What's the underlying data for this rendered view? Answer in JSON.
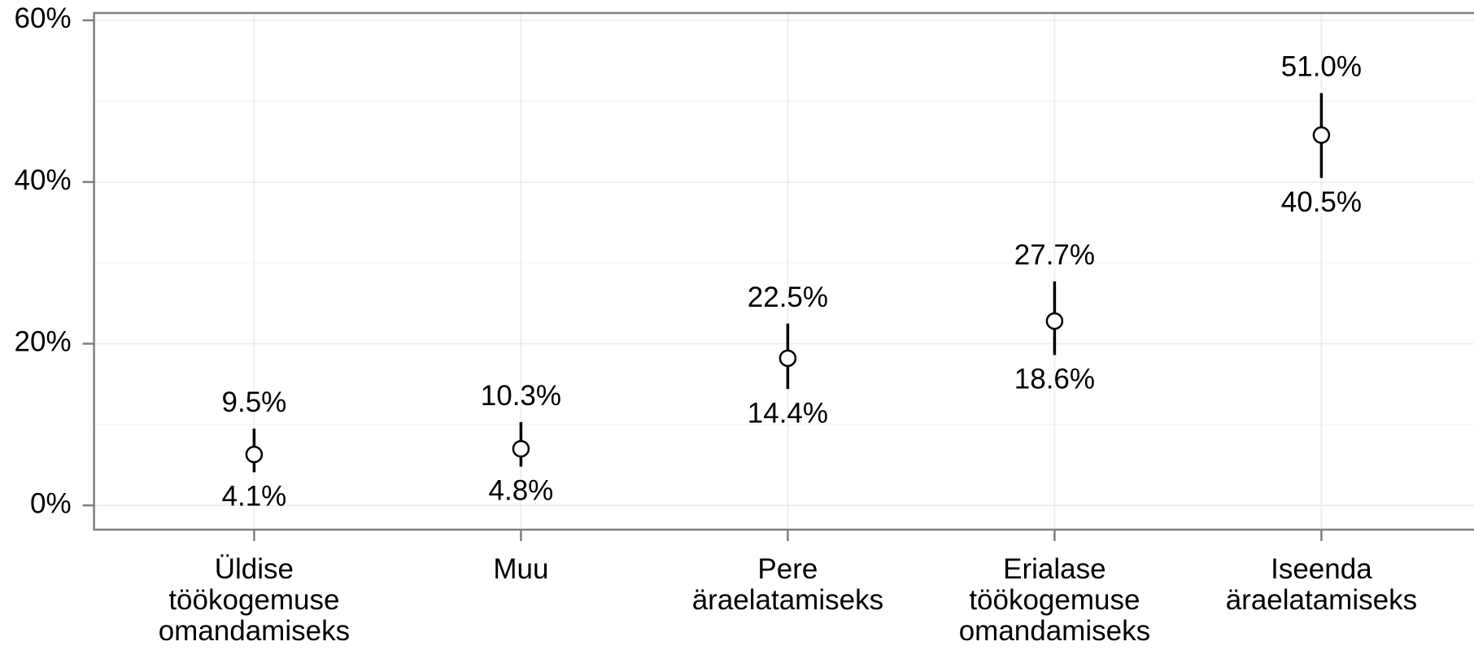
{
  "chart_data": {
    "type": "pointrange",
    "categories": [
      "Üldise töökogemuse omandamiseks",
      "Muu",
      "Pere äraelatamiseks",
      "Erialase töökogemuse omandamiseks",
      "Iseenda äraelatamiseks"
    ],
    "series": [
      {
        "color": "#000000",
        "values": [
          6.3,
          7.0,
          18.2,
          22.8,
          45.8
        ],
        "lower": [
          4.1,
          4.8,
          14.4,
          18.6,
          40.5
        ],
        "lower_labels": [
          "4.1%",
          "4.8%",
          "14.4%",
          "18.6%",
          "40.5%"
        ],
        "upper": [
          9.5,
          10.3,
          22.5,
          27.7,
          51.0
        ],
        "upper_labels": [
          "9.5%",
          "10.3%",
          "22.5%",
          "27.7%",
          "51.0%"
        ]
      }
    ],
    "ylim": [
      -3.0,
      60.9
    ],
    "yticks": [
      {
        "value": 0,
        "label": "0%"
      },
      {
        "value": 20,
        "label": "20%"
      },
      {
        "value": 40,
        "label": "40%"
      },
      {
        "value": 60,
        "label": "60%"
      }
    ],
    "minor_yticks": [
      10,
      30,
      50
    ],
    "grid": true
  }
}
